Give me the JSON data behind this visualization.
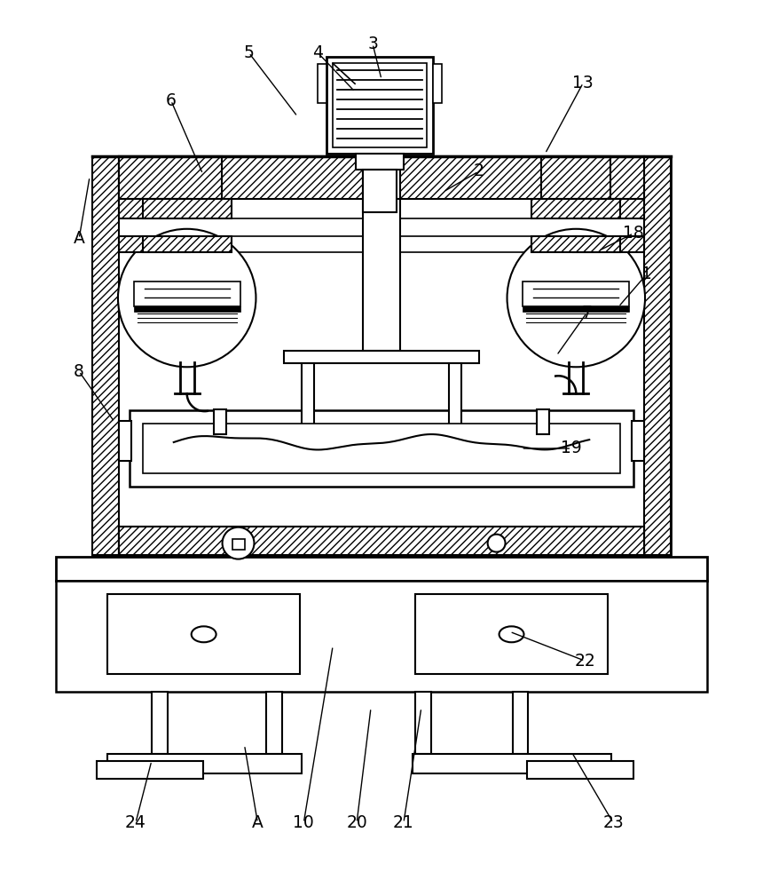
{
  "bg": "#ffffff",
  "figsize": [
    8.6,
    10.0
  ],
  "dpi": 100,
  "annotations": [
    [
      "3",
      420,
      48,
      430,
      88
    ],
    [
      "4",
      358,
      58,
      400,
      102
    ],
    [
      "5",
      280,
      58,
      335,
      130
    ],
    [
      "6",
      192,
      112,
      228,
      195
    ],
    [
      "2",
      540,
      192,
      500,
      215
    ],
    [
      "13",
      658,
      92,
      615,
      172
    ],
    [
      "18",
      715,
      262,
      675,
      282
    ],
    [
      "1",
      730,
      308,
      698,
      345
    ],
    [
      "7",
      662,
      352,
      628,
      400
    ],
    [
      "8",
      88,
      418,
      128,
      475
    ],
    [
      "19",
      645,
      505,
      588,
      505
    ],
    [
      "22",
      660,
      745,
      575,
      712
    ],
    [
      "24",
      152,
      928,
      170,
      858
    ],
    [
      "A",
      290,
      928,
      275,
      840
    ],
    [
      "10",
      342,
      928,
      375,
      728
    ],
    [
      "20",
      402,
      928,
      418,
      798
    ],
    [
      "21",
      455,
      928,
      475,
      798
    ],
    [
      "23",
      692,
      928,
      645,
      848
    ],
    [
      "A",
      88,
      268,
      100,
      198
    ]
  ]
}
